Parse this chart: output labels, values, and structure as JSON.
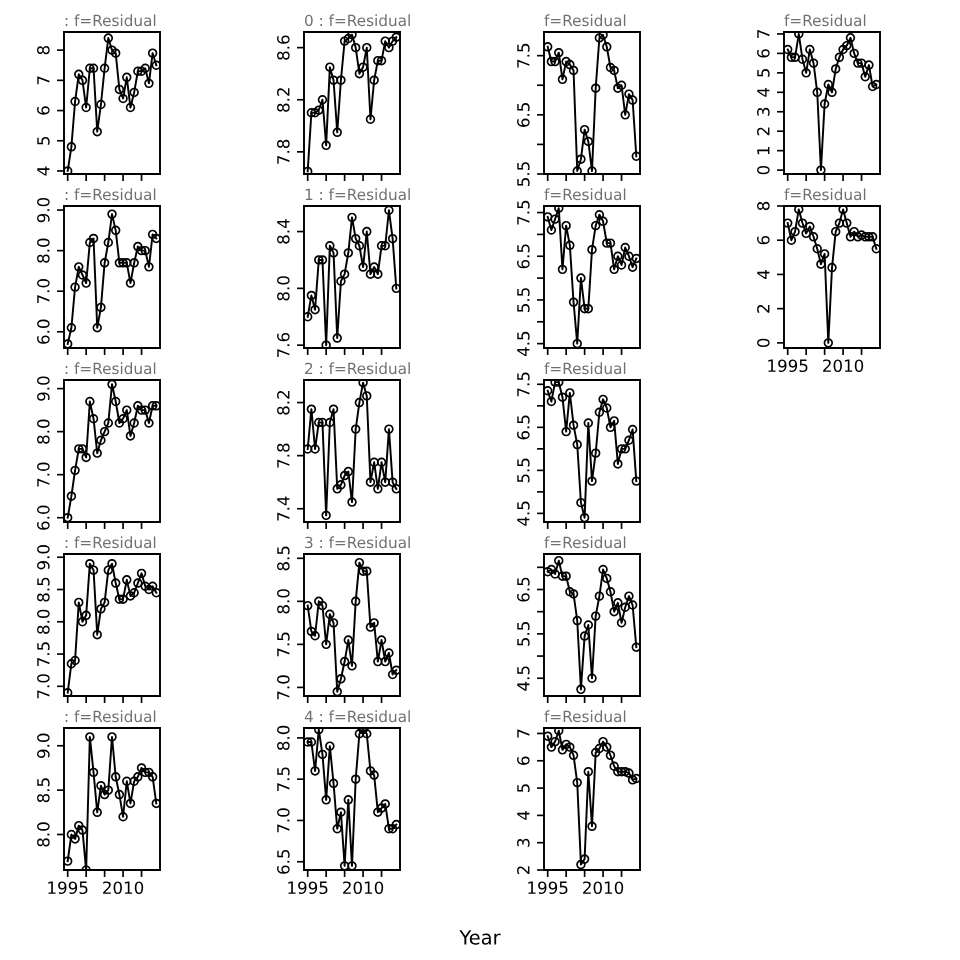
{
  "chart_data": [
    {
      "type": "line",
      "title": ": f=Residual",
      "x": [
        1995,
        1996,
        1997,
        1998,
        1999,
        2000,
        2001,
        2002,
        2003,
        2004,
        2005,
        2006,
        2007,
        2008,
        2009,
        2010,
        2011,
        2012,
        2013,
        2014,
        2015,
        2016,
        2017,
        2018,
        2019
      ],
      "values": [
        4.0,
        4.8,
        6.3,
        7.2,
        7.0,
        6.1,
        7.4,
        7.4,
        5.3,
        6.2,
        7.4,
        8.4,
        8.0,
        7.9,
        6.7,
        6.4,
        7.1,
        6.1,
        6.6,
        7.3,
        7.3,
        7.4,
        6.9,
        7.9,
        7.5
      ],
      "color": "#000000",
      "marker": "circle",
      "xlim": [
        1994,
        2020
      ],
      "xticks": [
        {
          "value": 1995,
          "label": null
        },
        {
          "value": 2000,
          "label": null
        },
        {
          "value": 2005,
          "label": null
        },
        {
          "value": 2010,
          "label": null
        },
        {
          "value": 2015,
          "label": null
        }
      ],
      "ylim": [
        3.9,
        8.6
      ],
      "yticks": [
        4,
        5,
        6,
        7,
        8
      ],
      "tick_labels": "y"
    },
    {
      "type": "line",
      "title": ": f=Residual",
      "x": [
        1995,
        1996,
        1997,
        1998,
        1999,
        2000,
        2001,
        2002,
        2003,
        2004,
        2005,
        2006,
        2007,
        2008,
        2009,
        2010,
        2011,
        2012,
        2013,
        2014,
        2015,
        2016,
        2017,
        2018,
        2019
      ],
      "values": [
        5.7,
        6.1,
        7.1,
        7.6,
        7.4,
        7.2,
        8.2,
        8.3,
        6.1,
        6.6,
        7.7,
        8.2,
        8.9,
        8.5,
        7.7,
        7.7,
        7.7,
        7.2,
        7.7,
        8.1,
        8.0,
        8.0,
        7.6,
        8.4,
        8.3
      ],
      "color": "#000000",
      "marker": "circle",
      "xlim": [
        1994,
        2020
      ],
      "xticks": [
        {
          "value": 1995,
          "label": null
        },
        {
          "value": 2000,
          "label": null
        },
        {
          "value": 2005,
          "label": null
        },
        {
          "value": 2010,
          "label": null
        },
        {
          "value": 2015,
          "label": null
        }
      ],
      "ylim": [
        5.6,
        9.1
      ],
      "yticks": [
        {
          "value": 6,
          "label": "6.0"
        },
        {
          "value": 7,
          "label": "7.0"
        },
        {
          "value": 8,
          "label": "8.0"
        },
        {
          "value": 9,
          "label": "9.0"
        }
      ],
      "tick_labels": "y"
    },
    {
      "type": "line",
      "title": ": f=Residual",
      "x": [
        1995,
        1996,
        1997,
        1998,
        1999,
        2000,
        2001,
        2002,
        2003,
        2004,
        2005,
        2006,
        2007,
        2008,
        2009,
        2010,
        2011,
        2012,
        2013,
        2014,
        2015,
        2016,
        2017,
        2018,
        2019
      ],
      "values": [
        6.0,
        6.5,
        7.1,
        7.6,
        7.6,
        7.4,
        8.7,
        8.3,
        7.5,
        7.8,
        8.0,
        8.2,
        9.1,
        8.7,
        8.2,
        8.3,
        8.5,
        7.9,
        8.2,
        8.6,
        8.5,
        8.5,
        8.2,
        8.6,
        8.6
      ],
      "color": "#000000",
      "marker": "circle",
      "xlim": [
        1994,
        2020
      ],
      "xticks": [
        {
          "value": 1995,
          "label": null
        },
        {
          "value": 2000,
          "label": null
        },
        {
          "value": 2005,
          "label": null
        },
        {
          "value": 2010,
          "label": null
        },
        {
          "value": 2015,
          "label": null
        }
      ],
      "ylim": [
        5.9,
        9.2
      ],
      "yticks": [
        {
          "value": 6,
          "label": "6.0"
        },
        {
          "value": 7,
          "label": "7.0"
        },
        {
          "value": 8,
          "label": "8.0"
        },
        {
          "value": 9,
          "label": "9.0"
        }
      ],
      "tick_labels": "y"
    },
    {
      "type": "line",
      "title": ": f=Residual",
      "x": [
        1995,
        1996,
        1997,
        1998,
        1999,
        2000,
        2001,
        2002,
        2003,
        2004,
        2005,
        2006,
        2007,
        2008,
        2009,
        2010,
        2011,
        2012,
        2013,
        2014,
        2015,
        2016,
        2017,
        2018,
        2019
      ],
      "values": [
        6.9,
        7.35,
        7.4,
        8.3,
        8.0,
        8.1,
        8.9,
        8.8,
        7.8,
        8.2,
        8.3,
        8.8,
        8.9,
        8.6,
        8.35,
        8.35,
        8.65,
        8.4,
        8.45,
        8.6,
        8.75,
        8.55,
        8.5,
        8.55,
        8.45
      ],
      "color": "#000000",
      "marker": "circle",
      "xlim": [
        1994,
        2020
      ],
      "xticks": [
        {
          "value": 1995,
          "label": null
        },
        {
          "value": 2000,
          "label": null
        },
        {
          "value": 2005,
          "label": null
        },
        {
          "value": 2010,
          "label": null
        },
        {
          "value": 2015,
          "label": null
        }
      ],
      "ylim": [
        6.85,
        9.05
      ],
      "yticks": [
        {
          "value": 7,
          "label": "7.0"
        },
        7.5,
        {
          "value": 8,
          "label": "8.0"
        },
        8.5,
        {
          "value": 9,
          "label": "9.0"
        }
      ],
      "tick_labels": "y"
    },
    {
      "type": "line",
      "title": ": f=Residual",
      "x": [
        1995,
        1996,
        1997,
        1998,
        1999,
        2000,
        2001,
        2002,
        2003,
        2004,
        2005,
        2006,
        2007,
        2008,
        2009,
        2010,
        2011,
        2012,
        2013,
        2014,
        2015,
        2016,
        2017,
        2018,
        2019
      ],
      "values": [
        7.7,
        8.0,
        7.95,
        8.1,
        8.05,
        7.6,
        9.1,
        8.7,
        8.25,
        8.55,
        8.45,
        8.5,
        9.1,
        8.65,
        8.45,
        8.2,
        8.6,
        8.35,
        8.6,
        8.65,
        8.75,
        8.7,
        8.7,
        8.65,
        8.35
      ],
      "color": "#000000",
      "marker": "circle",
      "xlim": [
        1994,
        2020
      ],
      "xticks": [
        1995,
        {
          "value": 2000,
          "label": null
        },
        {
          "value": 2005,
          "label": null
        },
        2010,
        {
          "value": 2015,
          "label": null
        }
      ],
      "ylim": [
        7.6,
        9.2
      ],
      "yticks": [
        {
          "value": 8,
          "label": "8.0"
        },
        8.5,
        {
          "value": 9,
          "label": "9.0"
        }
      ]
    },
    {
      "type": "line",
      "title": "0 : f=Residual",
      "x": [
        1995,
        1996,
        1997,
        1998,
        1999,
        2000,
        2001,
        2002,
        2003,
        2004,
        2005,
        2006,
        2007,
        2008,
        2009,
        2010,
        2011,
        2012,
        2013,
        2014,
        2015,
        2016,
        2017,
        2018,
        2019
      ],
      "values": [
        7.65,
        8.1,
        8.1,
        8.12,
        8.2,
        7.85,
        8.45,
        8.35,
        7.95,
        8.35,
        8.65,
        8.67,
        8.7,
        8.6,
        8.4,
        8.45,
        8.6,
        8.05,
        8.35,
        8.5,
        8.5,
        8.65,
        8.6,
        8.65,
        8.68
      ],
      "color": "#000000",
      "marker": "circle",
      "xlim": [
        1994,
        2020
      ],
      "xticks": [
        {
          "value": 1995,
          "label": null
        },
        {
          "value": 2000,
          "label": null
        },
        {
          "value": 2005,
          "label": null
        },
        {
          "value": 2010,
          "label": null
        },
        {
          "value": 2015,
          "label": null
        }
      ],
      "ylim": [
        7.63,
        8.72
      ],
      "yticks": [
        7.8,
        8.2,
        8.6
      ],
      "tick_labels": "y"
    },
    {
      "type": "line",
      "title": "1 : f=Residual",
      "x": [
        1995,
        1996,
        1997,
        1998,
        1999,
        2000,
        2001,
        2002,
        2003,
        2004,
        2005,
        2006,
        2007,
        2008,
        2009,
        2010,
        2011,
        2012,
        2013,
        2014,
        2015,
        2016,
        2017,
        2018,
        2019
      ],
      "values": [
        7.8,
        7.95,
        7.85,
        8.2,
        8.2,
        7.6,
        8.3,
        8.25,
        7.65,
        8.05,
        8.1,
        8.25,
        8.5,
        8.35,
        8.3,
        8.15,
        8.4,
        8.1,
        8.15,
        8.1,
        8.3,
        8.3,
        8.55,
        8.35,
        8.0
      ],
      "color": "#000000",
      "marker": "circle",
      "xlim": [
        1994,
        2020
      ],
      "xticks": [
        {
          "value": 1995,
          "label": null
        },
        {
          "value": 2000,
          "label": null
        },
        {
          "value": 2005,
          "label": null
        },
        {
          "value": 2010,
          "label": null
        },
        {
          "value": 2015,
          "label": null
        }
      ],
      "ylim": [
        7.58,
        8.58
      ],
      "yticks": [
        7.6,
        {
          "value": 8,
          "label": "8.0"
        },
        8.4
      ],
      "tick_labels": "y"
    },
    {
      "type": "line",
      "title": "2 : f=Residual",
      "x": [
        1995,
        1996,
        1997,
        1998,
        1999,
        2000,
        2001,
        2002,
        2003,
        2004,
        2005,
        2006,
        2007,
        2008,
        2009,
        2010,
        2011,
        2012,
        2013,
        2014,
        2015,
        2016,
        2017,
        2018,
        2019
      ],
      "values": [
        7.85,
        8.15,
        7.85,
        8.05,
        8.05,
        7.35,
        8.05,
        8.15,
        7.55,
        7.58,
        7.65,
        7.68,
        7.45,
        8.0,
        8.2,
        8.35,
        8.25,
        7.6,
        7.75,
        7.55,
        7.75,
        7.6,
        8.0,
        7.6,
        7.55
      ],
      "color": "#000000",
      "marker": "circle",
      "xlim": [
        1994,
        2020
      ],
      "xticks": [
        {
          "value": 1995,
          "label": null
        },
        {
          "value": 2000,
          "label": null
        },
        {
          "value": 2005,
          "label": null
        },
        {
          "value": 2010,
          "label": null
        },
        {
          "value": 2015,
          "label": null
        }
      ],
      "ylim": [
        7.3,
        8.37
      ],
      "yticks": [
        7.4,
        7.8,
        8.2
      ],
      "tick_labels": "y"
    },
    {
      "type": "line",
      "title": "3 : f=Residual",
      "x": [
        1995,
        1996,
        1997,
        1998,
        1999,
        2000,
        2001,
        2002,
        2003,
        2004,
        2005,
        2006,
        2007,
        2008,
        2009,
        2010,
        2011,
        2012,
        2013,
        2014,
        2015,
        2016,
        2017,
        2018,
        2019
      ],
      "values": [
        7.95,
        7.65,
        7.6,
        8.0,
        7.95,
        7.5,
        7.85,
        7.75,
        6.95,
        7.1,
        7.3,
        7.55,
        7.25,
        8.0,
        8.45,
        8.35,
        8.35,
        7.7,
        7.75,
        7.3,
        7.55,
        7.3,
        7.4,
        7.15,
        7.2
      ],
      "color": "#000000",
      "marker": "circle",
      "xlim": [
        1994,
        2020
      ],
      "xticks": [
        {
          "value": 1995,
          "label": null
        },
        {
          "value": 2000,
          "label": null
        },
        {
          "value": 2005,
          "label": null
        },
        {
          "value": 2010,
          "label": null
        },
        {
          "value": 2015,
          "label": null
        }
      ],
      "ylim": [
        6.9,
        8.55
      ],
      "yticks": [
        {
          "value": 7,
          "label": "7.0"
        },
        7.5,
        {
          "value": 8,
          "label": "8.0"
        },
        8.5
      ],
      "tick_labels": "y"
    },
    {
      "type": "line",
      "title": "4 : f=Residual",
      "x": [
        1995,
        1996,
        1997,
        1998,
        1999,
        2000,
        2001,
        2002,
        2003,
        2004,
        2005,
        2006,
        2007,
        2008,
        2009,
        2010,
        2011,
        2012,
        2013,
        2014,
        2015,
        2016,
        2017,
        2018,
        2019
      ],
      "values": [
        7.95,
        7.95,
        7.6,
        8.1,
        7.8,
        7.25,
        7.9,
        7.45,
        6.9,
        7.1,
        6.45,
        7.25,
        6.45,
        7.5,
        8.05,
        8.1,
        8.05,
        7.6,
        7.55,
        7.1,
        7.15,
        7.2,
        6.9,
        6.9,
        6.95
      ],
      "color": "#000000",
      "marker": "circle",
      "xlim": [
        1994,
        2020
      ],
      "xticks": [
        1995,
        {
          "value": 2000,
          "label": null
        },
        {
          "value": 2005,
          "label": null
        },
        2010,
        {
          "value": 2015,
          "label": null
        }
      ],
      "ylim": [
        6.4,
        8.12
      ],
      "yticks": [
        6.5,
        {
          "value": 7,
          "label": "7.0"
        },
        7.5,
        {
          "value": 8,
          "label": "8.0"
        }
      ],
      "xlabel": "Year"
    },
    {
      "type": "line",
      "title": "f=Residual",
      "x": [
        1995,
        1996,
        1997,
        1998,
        1999,
        2000,
        2001,
        2002,
        2003,
        2004,
        2005,
        2006,
        2007,
        2008,
        2009,
        2010,
        2011,
        2012,
        2013,
        2014,
        2015,
        2016,
        2017,
        2018,
        2019
      ],
      "values": [
        7.65,
        7.4,
        7.4,
        7.55,
        7.1,
        7.4,
        7.35,
        7.25,
        5.55,
        5.75,
        6.25,
        6.05,
        5.55,
        6.95,
        7.8,
        7.85,
        7.65,
        7.3,
        7.25,
        6.95,
        7.0,
        6.5,
        6.85,
        6.75,
        5.8
      ],
      "color": "#000000",
      "marker": "circle",
      "xlim": [
        1994,
        2020
      ],
      "xticks": [
        {
          "value": 1995,
          "label": null
        },
        {
          "value": 2000,
          "label": null
        },
        {
          "value": 2005,
          "label": null
        },
        {
          "value": 2010,
          "label": null
        },
        {
          "value": 2015,
          "label": null
        }
      ],
      "ylim": [
        5.5,
        7.9
      ],
      "yticks": [
        5.5,
        {
          "value": 6,
          "label": null
        },
        6.5,
        {
          "value": 7,
          "label": null
        },
        7.5
      ],
      "tick_labels": "y"
    },
    {
      "type": "line",
      "title": "f=Residual",
      "x": [
        1995,
        1996,
        1997,
        1998,
        1999,
        2000,
        2001,
        2002,
        2003,
        2004,
        2005,
        2006,
        2007,
        2008,
        2009,
        2010,
        2011,
        2012,
        2013,
        2014,
        2015,
        2016,
        2017,
        2018,
        2019
      ],
      "values": [
        7.4,
        7.1,
        7.35,
        7.6,
        6.2,
        7.2,
        6.75,
        5.45,
        4.5,
        6.0,
        5.3,
        5.3,
        6.65,
        7.2,
        7.45,
        7.3,
        6.8,
        6.8,
        6.2,
        6.5,
        6.3,
        6.7,
        6.5,
        6.25,
        6.45
      ],
      "color": "#000000",
      "marker": "circle",
      "xlim": [
        1994,
        2020
      ],
      "xticks": [
        {
          "value": 1995,
          "label": null
        },
        {
          "value": 2000,
          "label": null
        },
        {
          "value": 2005,
          "label": null
        },
        {
          "value": 2010,
          "label": null
        },
        {
          "value": 2015,
          "label": null
        }
      ],
      "ylim": [
        4.4,
        7.65
      ],
      "yticks": [
        4.5,
        {
          "value": 5,
          "label": null
        },
        5.5,
        {
          "value": 6,
          "label": null
        },
        6.5,
        {
          "value": 7,
          "label": null
        },
        7.5
      ],
      "tick_labels": "y"
    },
    {
      "type": "line",
      "title": "f=Residual",
      "x": [
        1995,
        1996,
        1997,
        1998,
        1999,
        2000,
        2001,
        2002,
        2003,
        2004,
        2005,
        2006,
        2007,
        2008,
        2009,
        2010,
        2011,
        2012,
        2013,
        2014,
        2015,
        2016,
        2017,
        2018,
        2019
      ],
      "values": [
        7.35,
        7.1,
        7.55,
        7.55,
        7.2,
        6.4,
        7.3,
        6.55,
        6.1,
        4.75,
        4.4,
        6.6,
        5.25,
        5.9,
        6.85,
        7.15,
        6.95,
        6.5,
        6.65,
        5.65,
        6.0,
        6.0,
        6.2,
        6.45,
        5.25
      ],
      "color": "#000000",
      "marker": "circle",
      "xlim": [
        1994,
        2020
      ],
      "xticks": [
        {
          "value": 1995,
          "label": null
        },
        {
          "value": 2000,
          "label": null
        },
        {
          "value": 2005,
          "label": null
        },
        {
          "value": 2010,
          "label": null
        },
        {
          "value": 2015,
          "label": null
        }
      ],
      "ylim": [
        4.3,
        7.6
      ],
      "yticks": [
        4.5,
        {
          "value": 5,
          "label": null
        },
        5.5,
        {
          "value": 6,
          "label": null
        },
        6.5,
        {
          "value": 7,
          "label": null
        },
        7.5
      ],
      "tick_labels": "y"
    },
    {
      "type": "line",
      "title": "f=Residual",
      "x": [
        1995,
        1996,
        1997,
        1998,
        1999,
        2000,
        2001,
        2002,
        2003,
        2004,
        2005,
        2006,
        2007,
        2008,
        2009,
        2010,
        2011,
        2012,
        2013,
        2014,
        2015,
        2016,
        2017,
        2018,
        2019
      ],
      "values": [
        6.9,
        6.95,
        6.85,
        7.15,
        6.8,
        6.8,
        6.45,
        6.4,
        5.8,
        4.25,
        5.45,
        5.7,
        4.5,
        5.9,
        6.35,
        6.95,
        6.75,
        6.45,
        6.0,
        6.2,
        5.75,
        6.1,
        6.35,
        6.15,
        5.2
      ],
      "color": "#000000",
      "marker": "circle",
      "xlim": [
        1994,
        2020
      ],
      "xticks": [
        {
          "value": 1995,
          "label": null
        },
        {
          "value": 2000,
          "label": null
        },
        {
          "value": 2005,
          "label": null
        },
        {
          "value": 2010,
          "label": null
        },
        {
          "value": 2015,
          "label": null
        }
      ],
      "ylim": [
        4.1,
        7.3
      ],
      "yticks": [
        4.5,
        {
          "value": 5,
          "label": null
        },
        5.5,
        {
          "value": 6,
          "label": null
        },
        6.5,
        {
          "value": 7,
          "label": null
        }
      ],
      "tick_labels": "y"
    },
    {
      "type": "line",
      "title": "f=Residual",
      "x": [
        1995,
        1996,
        1997,
        1998,
        1999,
        2000,
        2001,
        2002,
        2003,
        2004,
        2005,
        2006,
        2007,
        2008,
        2009,
        2010,
        2011,
        2012,
        2013,
        2014,
        2015,
        2016,
        2017,
        2018,
        2019
      ],
      "values": [
        6.9,
        6.5,
        6.7,
        7.1,
        6.4,
        6.6,
        6.5,
        6.2,
        5.2,
        2.2,
        2.4,
        5.6,
        3.6,
        6.3,
        6.45,
        6.7,
        6.5,
        6.2,
        5.8,
        5.6,
        5.6,
        5.6,
        5.55,
        5.3,
        5.35
      ],
      "color": "#000000",
      "marker": "circle",
      "xlim": [
        1994,
        2020
      ],
      "xticks": [
        1995,
        {
          "value": 2000,
          "label": null
        },
        {
          "value": 2005,
          "label": null
        },
        2010,
        {
          "value": 2015,
          "label": null
        }
      ],
      "ylim": [
        2,
        7.2
      ],
      "yticks": [
        2,
        3,
        4,
        5,
        6,
        7
      ]
    },
    {
      "type": "line",
      "title": "f=Residual",
      "x": [
        1995,
        1996,
        1997,
        1998,
        1999,
        2000,
        2001,
        2002,
        2003,
        2004,
        2005,
        2006,
        2007,
        2008,
        2009,
        2010,
        2011,
        2012,
        2013,
        2014,
        2015,
        2016,
        2017,
        2018,
        2019
      ],
      "values": [
        6.2,
        5.8,
        5.8,
        7.0,
        5.7,
        5.0,
        6.2,
        5.5,
        4.0,
        0.0,
        3.4,
        4.4,
        4.0,
        5.2,
        5.8,
        6.2,
        6.4,
        6.8,
        6.0,
        5.5,
        5.5,
        4.8,
        5.4,
        4.3,
        4.4
      ],
      "color": "#000000",
      "marker": "circle",
      "xlim": [
        1994,
        2020
      ],
      "xticks": [
        {
          "value": 1995,
          "label": null
        },
        {
          "value": 2000,
          "label": null
        },
        {
          "value": 2005,
          "label": null
        },
        {
          "value": 2010,
          "label": null
        },
        {
          "value": 2015,
          "label": null
        }
      ],
      "ylim": [
        -0.2,
        7.1
      ],
      "yticks": [
        0,
        1,
        2,
        3,
        4,
        5,
        6,
        7
      ],
      "tick_labels": "y"
    },
    {
      "type": "line",
      "title": "f=Residual",
      "x": [
        1995,
        1996,
        1997,
        1998,
        1999,
        2000,
        2001,
        2002,
        2003,
        2004,
        2005,
        2006,
        2007,
        2008,
        2009,
        2010,
        2011,
        2012,
        2013,
        2014,
        2015,
        2016,
        2017,
        2018,
        2019
      ],
      "values": [
        7.0,
        6.0,
        6.5,
        7.8,
        7.0,
        6.4,
        6.8,
        6.2,
        5.5,
        4.6,
        5.2,
        0.0,
        4.4,
        6.5,
        7.0,
        7.8,
        7.0,
        6.2,
        6.5,
        6.2,
        6.3,
        6.2,
        6.2,
        6.2,
        5.5
      ],
      "color": "#000000",
      "marker": "circle",
      "xlim": [
        1994,
        2020
      ],
      "xticks": [
        1995,
        {
          "value": 2000,
          "label": null
        },
        {
          "value": 2005,
          "label": null
        },
        2010,
        {
          "value": 2015,
          "label": null
        }
      ],
      "ylim": [
        -0.3,
        8
      ],
      "yticks": [
        0,
        2,
        4,
        6,
        8
      ]
    }
  ]
}
